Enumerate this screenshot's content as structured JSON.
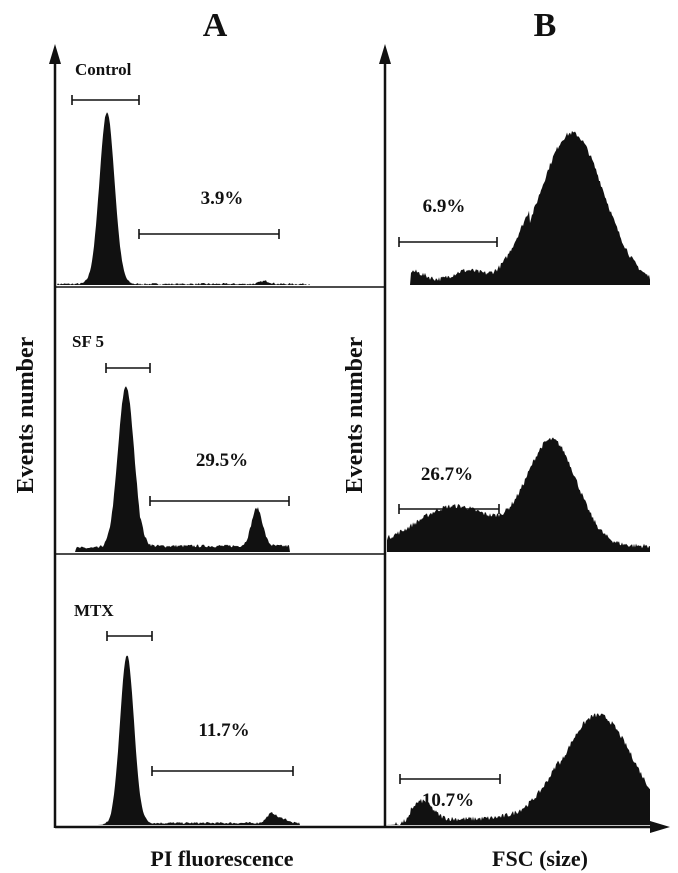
{
  "panels": [
    {
      "letter": "A",
      "axis_title": "PI fluorescence",
      "y_title": "Events number"
    },
    {
      "letter": "B",
      "axis_title": "FSC (size)",
      "y_title": "Events number"
    }
  ],
  "chart_data": [
    {
      "type": "area",
      "panel": "A",
      "xlabel": "PI fluorescence",
      "ylabel": "Events number",
      "grid": false,
      "series": [
        {
          "name": "Control",
          "gate_percent": "3.9%"
        },
        {
          "name": "SF 5",
          "gate_percent": "29.5%"
        },
        {
          "name": "MTX",
          "gate_percent": "11.7%"
        }
      ]
    },
    {
      "type": "area",
      "panel": "B",
      "xlabel": "FSC (size)",
      "ylabel": "Events number",
      "grid": false,
      "series": [
        {
          "gate_percent": "6.9%"
        },
        {
          "gate_percent": "26.7%"
        },
        {
          "gate_percent": "10.7%"
        }
      ]
    }
  ],
  "colors": {
    "fill": "#111111",
    "axis": "#111111",
    "background": "#ffffff"
  }
}
